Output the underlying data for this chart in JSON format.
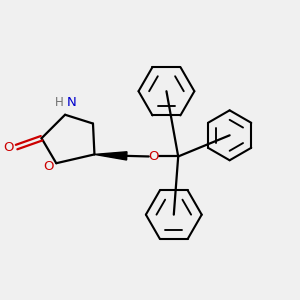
{
  "bg_color": "#f0f0f0",
  "ring_color": "#000000",
  "N_color": "#0000cd",
  "O_color": "#cc0000",
  "H_color": "#707070",
  "bond_lw": 1.6,
  "phenyl_lw": 1.5,
  "figsize": [
    3.0,
    3.0
  ],
  "dpi": 100,
  "xlim": [
    0,
    10
  ],
  "ylim": [
    0,
    10
  ]
}
